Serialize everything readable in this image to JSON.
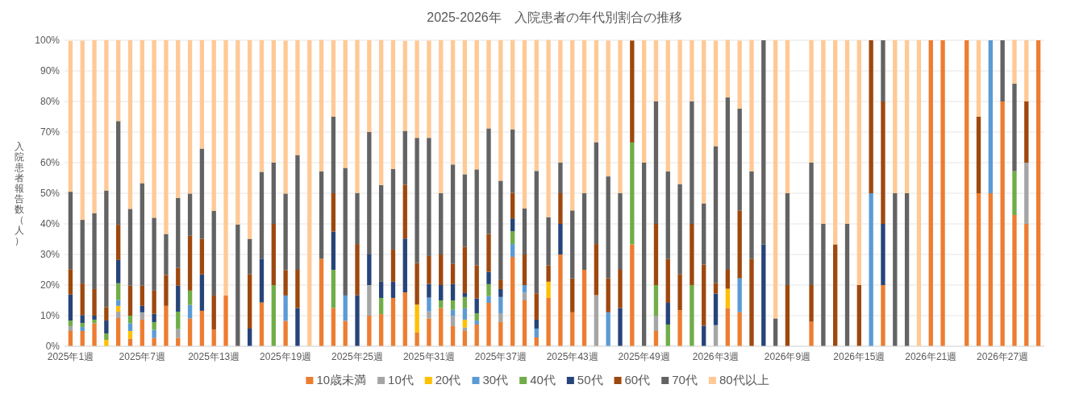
{
  "chart_data": {
    "type": "bar",
    "stacked": true,
    "title": "2025-2026年　入院患者の年代別割合の推移",
    "ylabel": "入院患者報告数（人）",
    "categories": [
      "2025年1週",
      null,
      null,
      null,
      null,
      null,
      "2025年7週",
      null,
      null,
      null,
      null,
      null,
      "2025年13週",
      null,
      null,
      null,
      null,
      null,
      "2025年19週",
      null,
      null,
      null,
      null,
      null,
      "2025年25週",
      null,
      null,
      null,
      null,
      null,
      "2025年31週",
      null,
      null,
      null,
      null,
      null,
      "2025年37週",
      null,
      null,
      null,
      null,
      null,
      "2025年43週",
      null,
      null,
      null,
      null,
      null,
      "2025年49週",
      null,
      null,
      null,
      null,
      null,
      "2026年3週",
      null,
      null,
      null,
      null,
      null,
      "2026年9週",
      null,
      null,
      null,
      null,
      null,
      "2026年15週",
      null,
      null,
      null,
      null,
      null,
      "2026年21週",
      null,
      null,
      null,
      null,
      null,
      "2026年27週",
      null,
      null,
      null
    ],
    "ylim": [
      0,
      100
    ],
    "yticks": [
      {
        "value": 0,
        "label": "0%"
      },
      {
        "value": 10,
        "label": "10%"
      },
      {
        "value": 20,
        "label": "20%"
      },
      {
        "value": 30,
        "label": "30%"
      },
      {
        "value": 40,
        "label": "40%"
      },
      {
        "value": 50,
        "label": "50%"
      },
      {
        "value": 60,
        "label": "60%"
      },
      {
        "value": 70,
        "label": "70%"
      },
      {
        "value": 80,
        "label": "80%"
      },
      {
        "value": 90,
        "label": "90%"
      },
      {
        "value": 100,
        "label": "100%"
      }
    ],
    "grid": "y",
    "legend": "bottom",
    "series": [
      {
        "name": "10歳未満",
        "color": "#ed7d31",
        "values": [
          5,
          5,
          7.5,
          0,
          9.2,
          2.5,
          8.7,
          2.7,
          13.2,
          2.7,
          9.1,
          11.6,
          5.5,
          16.6,
          0,
          0,
          14.3,
          0,
          8.3,
          0,
          0,
          28.6,
          12.5,
          8.3,
          0,
          10,
          10.5,
          15.8,
          17.6,
          4.5,
          9.1,
          12.5,
          6.6,
          5,
          7.1,
          14.2,
          7.9,
          29.2,
          15,
          2.9,
          15.8,
          30,
          11.1,
          25,
          0,
          0,
          0,
          33.3,
          0,
          5,
          0,
          11.8,
          0,
          0,
          0,
          12.5,
          11.1,
          0,
          0,
          0,
          0,
          null,
          8,
          0,
          0,
          0,
          0,
          0,
          20,
          0,
          0,
          0,
          100,
          100,
          null,
          100,
          50,
          50,
          80,
          42.9,
          40,
          100
        ]
      },
      {
        "name": "10代",
        "color": "#a5a5a5",
        "values": [
          1.6,
          0,
          0,
          0,
          2.1,
          0,
          2.4,
          0,
          0,
          2.9,
          0,
          0,
          0,
          0,
          0,
          0,
          0,
          0,
          0,
          0,
          0,
          0,
          0,
          0,
          0,
          10,
          0,
          0,
          0,
          0,
          2.3,
          0,
          3.4,
          1.1,
          0,
          0,
          2.9,
          0,
          2.5,
          0,
          0,
          0,
          0,
          0,
          16.7,
          0,
          0,
          0,
          0,
          5,
          0,
          0,
          0,
          0,
          6.9,
          0,
          0,
          0,
          0,
          0,
          0,
          null,
          0,
          0,
          0,
          0,
          0,
          0,
          0,
          0,
          0,
          0,
          0,
          0,
          null,
          0,
          0,
          0,
          0,
          0,
          20,
          0
        ]
      },
      {
        "name": "20代",
        "color": "#ffc000",
        "values": [
          0,
          0,
          0,
          2.1,
          1.9,
          2.5,
          0,
          0,
          0,
          0,
          0,
          0,
          0,
          0,
          0,
          0,
          0,
          0,
          0,
          0,
          0,
          0,
          0,
          0,
          0,
          0,
          0,
          0,
          0,
          9.1,
          0,
          0,
          0,
          2.6,
          0,
          0,
          0,
          0,
          0,
          0,
          5.3,
          0,
          0,
          0,
          0,
          0,
          0,
          0,
          0,
          0,
          0,
          0,
          0,
          0,
          0,
          6.3,
          0,
          0,
          0,
          0,
          0,
          null,
          0,
          0,
          0,
          0,
          0,
          0,
          0,
          0,
          0,
          0,
          0,
          0,
          null,
          0,
          0,
          0,
          0,
          0,
          0,
          0
        ]
      },
      {
        "name": "30代",
        "color": "#5b9bd5",
        "values": [
          0,
          1.3,
          0,
          0,
          1.9,
          2.5,
          0,
          2.7,
          0,
          0,
          4.4,
          0,
          0,
          0,
          0,
          0,
          0,
          0,
          8.3,
          0,
          0,
          0,
          0,
          8.3,
          0,
          0,
          0,
          0,
          0,
          0,
          4.5,
          0,
          1.9,
          3.7,
          1.3,
          2.2,
          5.3,
          4.2,
          2.5,
          2.9,
          0,
          0,
          0,
          0,
          0,
          11.1,
          0,
          0,
          0,
          0,
          0,
          0,
          0,
          0,
          0,
          0,
          11.1,
          0,
          0,
          0,
          0,
          null,
          0,
          0,
          0,
          0,
          0,
          50,
          0,
          0,
          0,
          0,
          0,
          0,
          null,
          0,
          0,
          50,
          0,
          0,
          0,
          0
        ]
      },
      {
        "name": "40代",
        "color": "#70ad47",
        "values": [
          1.8,
          1.3,
          1.2,
          2.1,
          5.5,
          2.5,
          0,
          2.5,
          0,
          5.7,
          4.7,
          0,
          0,
          0,
          0,
          0,
          0,
          20,
          0,
          0,
          0,
          0,
          12.5,
          0,
          0,
          0,
          5.3,
          0,
          0,
          0,
          0,
          2.5,
          3.1,
          3.7,
          2.4,
          3.9,
          0,
          4.2,
          0,
          0,
          0,
          0,
          0,
          0,
          0,
          0,
          0,
          33.3,
          0,
          10,
          7.1,
          0,
          20,
          0,
          0,
          0,
          0,
          0,
          0,
          0,
          0,
          null,
          0,
          0,
          0,
          0,
          0,
          0,
          0,
          0,
          0,
          0,
          0,
          0,
          null,
          0,
          0,
          0,
          0,
          14.3,
          0,
          0
        ]
      },
      {
        "name": "50代",
        "color": "#264478",
        "values": [
          8.5,
          2.6,
          1.3,
          4.2,
          7.6,
          0,
          2.1,
          2.7,
          0,
          8.5,
          0,
          11.9,
          0,
          0,
          0,
          5.8,
          14.3,
          0,
          0,
          12.5,
          0,
          0,
          12.5,
          0,
          16.7,
          10,
          5.3,
          5.3,
          17.6,
          0,
          4.5,
          5,
          5.3,
          1.3,
          4.8,
          4,
          2.6,
          4.2,
          0,
          2.9,
          0,
          10,
          0,
          0,
          0,
          0,
          12.5,
          0,
          0,
          0,
          7.1,
          0,
          0,
          6.7,
          10.3,
          0,
          0,
          0,
          33.3,
          0,
          0,
          null,
          0,
          0,
          0,
          0,
          0,
          0,
          20,
          0,
          0,
          0,
          0,
          0,
          null,
          0,
          0,
          0,
          0,
          0,
          0,
          0
        ]
      },
      {
        "name": "60代",
        "color": "#9e480e",
        "values": [
          8.3,
          10.3,
          8.7,
          4.4,
          11.5,
          9.8,
          6.6,
          7.6,
          10.1,
          5.8,
          17.9,
          11.6,
          11.1,
          0,
          0,
          17.7,
          0,
          20,
          8.3,
          12.5,
          0,
          0,
          12.5,
          0,
          16.7,
          0,
          0,
          10.5,
          17.6,
          13.6,
          9.1,
          10,
          6.6,
          15.1,
          10.8,
          12.4,
          2.9,
          8.3,
          10,
          8.6,
          5.3,
          10,
          11.1,
          0,
          16.7,
          11.1,
          12.5,
          33.3,
          0,
          20,
          14.3,
          11.8,
          20,
          20,
          3.4,
          6.2,
          22.2,
          28.6,
          0,
          0,
          20,
          null,
          12,
          0,
          33.3,
          0,
          20,
          50,
          40,
          0,
          0,
          0,
          0,
          0,
          null,
          0,
          25,
          0,
          0,
          0,
          20,
          0
        ]
      },
      {
        "name": "70代",
        "color": "#636363",
        "values": [
          25.3,
          20.8,
          24.8,
          38.1,
          33.9,
          25.1,
          33.5,
          23.8,
          13.4,
          22.9,
          13.8,
          29.5,
          27.7,
          0,
          39.8,
          11.6,
          28.4,
          20,
          25,
          37.5,
          0,
          28.6,
          25,
          41.7,
          16.7,
          40,
          31.6,
          26.3,
          17.6,
          40.9,
          38.6,
          20,
          32.5,
          23.7,
          31.4,
          34.5,
          32.5,
          20.8,
          15,
          40,
          15.8,
          10,
          22.2,
          25,
          33.3,
          33.3,
          25,
          0,
          60,
          40,
          28.6,
          29.4,
          40,
          20,
          44.8,
          56.3,
          33.3,
          28.6,
          66.7,
          9.1,
          30,
          null,
          40,
          40,
          0,
          40,
          0,
          0,
          20,
          50,
          50,
          0,
          0,
          0,
          null,
          0,
          0,
          0,
          20,
          28.6,
          0,
          0
        ]
      },
      {
        "name": "80代以上",
        "color": "#ffc995",
        "values": [
          49.3,
          58.6,
          56.5,
          49.1,
          26.4,
          55.1,
          46.7,
          58,
          63.3,
          51.5,
          50.1,
          35.4,
          55.7,
          83.4,
          60.2,
          64.9,
          43,
          40,
          50,
          37.5,
          100,
          42.9,
          25,
          41.7,
          50,
          30,
          47.4,
          42.1,
          29.4,
          31.8,
          31.8,
          50,
          40.6,
          43.8,
          42.2,
          28.8,
          45.9,
          29.2,
          55,
          42.8,
          57.9,
          40,
          55.6,
          50,
          33.3,
          44.4,
          50,
          0,
          40,
          20,
          42.9,
          47.1,
          20,
          53.3,
          34.5,
          18.8,
          22.2,
          42.9,
          0,
          90.9,
          50,
          null,
          40,
          60,
          66.7,
          60,
          80,
          0,
          0,
          50,
          50,
          100,
          0,
          0,
          null,
          0,
          25,
          0,
          0,
          14.3,
          20,
          0
        ]
      }
    ]
  }
}
